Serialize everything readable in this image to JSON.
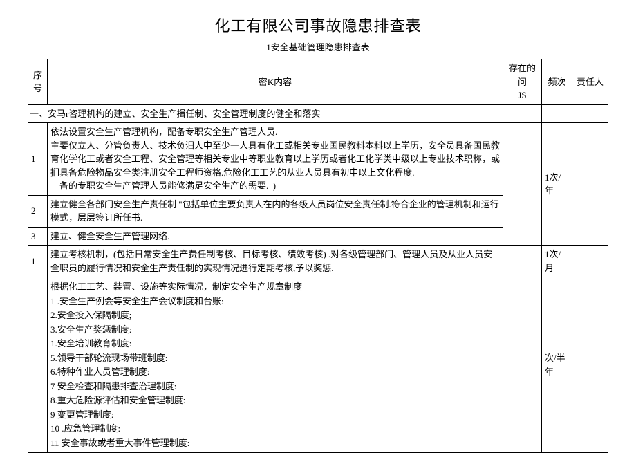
{
  "title": "化工有限公司事故隐患排查表",
  "subtitle": "1安全基础管理隐患排查表",
  "headers": {
    "seq": "序号",
    "content": "密K内容",
    "issue_line1": "存在的问",
    "issue_line2": "JS",
    "freq": "频次",
    "resp": "责任人"
  },
  "section": {
    "prefix": "一、安马",
    "text": "r咨理机构的建立、安全生产揖任制、安全管理制度的健全和落实"
  },
  "rows": [
    {
      "seq": "1",
      "content": "依法设置安全生产管理机构，配备专职安全生产管理人员.\n主要仅立人、分管负责人、技术负汨人中至少一人具有化工或相关专业国民教科本科以上学历，安全员具备国民教育化学化工或者安全工程、安全管理等相关专业中等职业教育以上学历或者化工化学类中级以上专业技术职称，或扪具备危险物品安全类注册安全工程师资格.危险化工工艺的从业人员具有初中以上文化程度.\n    备的专职安全生产管理人员能修满足安全生产的需要.  )",
      "freq": "1次/年"
    },
    {
      "seq": "2",
      "content": "建立健全各部门安全生产责任制 \"包括单位主要负责人在内的各级人员岗位安全责任制.符合企业的管理机制和运行模式，层层签订所任书.",
      "freq": ""
    },
    {
      "seq": "3",
      "content": "建立、健全安全生产管理网络.",
      "freq": ""
    },
    {
      "seq": "1",
      "content": "建立考核机制，(包括日常安全生产费任制考核、目标考核、绩效考核) .对各级管理部门、管理人员及从业人员安全职员的履行情况和安全生产责任制的实现情况进行定期考核,予以奖惩.",
      "freq": "1次/月"
    }
  ],
  "list_row": {
    "intro": "根据化工工艺、装置、设施等实际情况，制定安全生产规章制度",
    "items": [
      "1        .安全生产例会等安全生产会议制度和台账:",
      "2.安全投入保隔制度;",
      "3.安全生产奖惩制度:",
      "1.安全培训教育制度:",
      "5.领导干部轮流现场带班制度:",
      "6.特种作业人员管理制度:",
      "7 安全检查和隔患排查治理制度:",
      "8.重大危险源评估和安全管理制度:",
      "9 变更管理制度:",
      "10        .应急管理制度:",
      "11        安全事故或者重大事件管理制度:"
    ],
    "freq": "次/半年"
  }
}
